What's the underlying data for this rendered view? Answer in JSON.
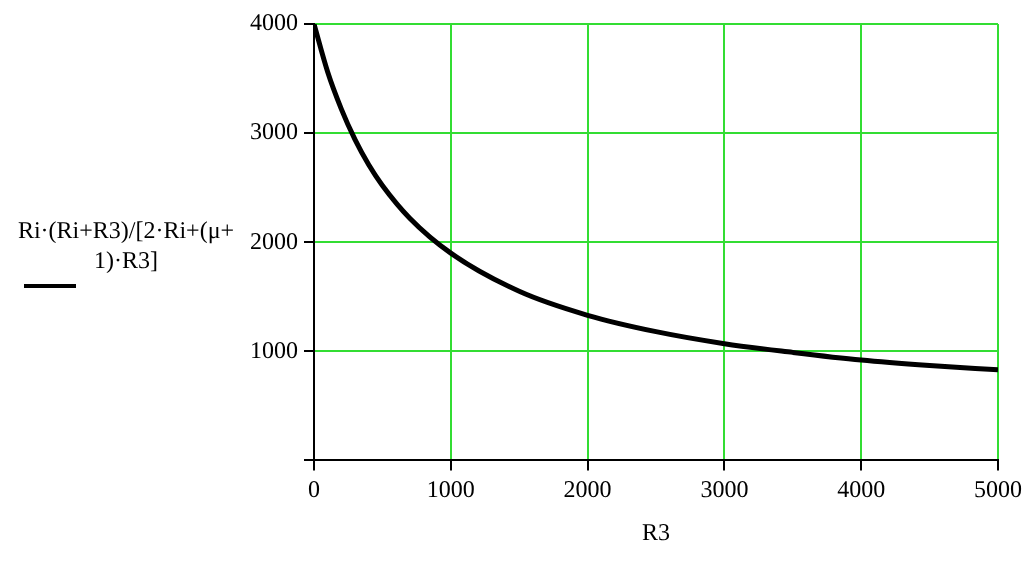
{
  "chart_data": {
    "type": "line",
    "xlabel": "R3",
    "ylabel": "Ri·(Ri+R3)/[2·Ri+(μ+1)·R3]",
    "x": [
      0,
      100,
      200,
      300,
      400,
      500,
      700,
      1000,
      1500,
      2000,
      2500,
      3000,
      3500,
      4000,
      4500,
      5000
    ],
    "series": [
      {
        "color": "#000000",
        "values": [
          4000,
          3560,
          3220,
          2940,
          2710,
          2520,
          2220,
          1900,
          1550,
          1330,
          1180,
          1070,
          990,
          920,
          870,
          830
        ]
      }
    ],
    "xlim": [
      0,
      5000
    ],
    "xticks": [
      0,
      1000,
      2000,
      3000,
      4000,
      5000
    ],
    "ylim": [
      0,
      4000
    ],
    "yticks": [
      {
        "value": 0,
        "label": null
      },
      1000,
      2000,
      3000,
      4000
    ],
    "grid": true,
    "marker": "none",
    "line_style": "solid"
  }
}
